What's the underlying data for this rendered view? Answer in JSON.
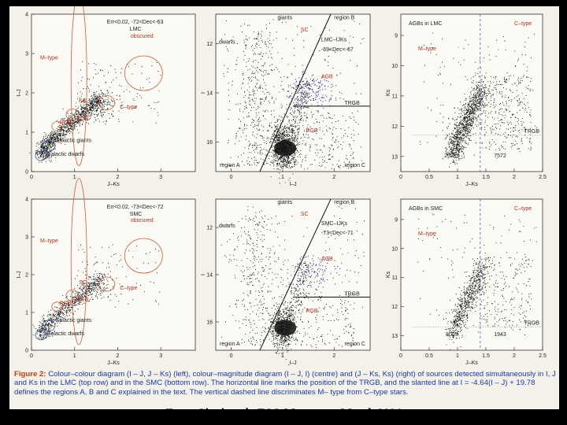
{
  "caption": {
    "label": "Figure 2:",
    "text": "Colour–colour diagram (I – J, J – Ks) (left), colour–magnitude diagram (I – J, I) (centre) and (J – Ks, Ks) (right) of sources detected simultaneously in I, J and Ks in the LMC (top row) and in the SMC (bottom row). The horizontal line marks the position of the TRGB, and the slanted line at I = -4.64(I – J) + 19.78 defines the regions A, B and C explained in the text. The vertical dashed line discriminates M– type from C–type stars."
  },
  "credit": "From Cioni et al., ESO Messenger March 2004",
  "colors": {
    "points": "#111111",
    "agb": "#3a3aa8",
    "annotation": "#c06040",
    "caption": "#1a3aa0"
  },
  "panels": {
    "lmc_cc": {
      "header": "Err<0.02, -72<Dec<-63",
      "header2": "LMC",
      "xlabel": "J–Ks",
      "ylabel": "I–J",
      "labels": [
        "M–type",
        "obscured",
        "C–type",
        "SC",
        "RGB",
        "AGB",
        "Galactic giants",
        "Galactic dwarfs"
      ]
    },
    "smc_cc": {
      "header": "Err<0.02, -73<Dec<-72",
      "header2": "SMC",
      "xlabel": "J–Ks",
      "ylabel": "I–J",
      "labels": [
        "M–type",
        "obscured",
        "C–type",
        "SC",
        "RGB",
        "AGB",
        "Galactic giants",
        "Galactic dwarfs"
      ]
    },
    "lmc_cm": {
      "xlabel": "I–J",
      "ylabel": "I",
      "labels": [
        "giants",
        "dwarfs",
        "SC",
        "region B",
        "LMC–IJKs",
        "-69<Dec<-67",
        "AGB",
        "TRGB",
        "RGB",
        "region A",
        "region C"
      ]
    },
    "smc_cm": {
      "xlabel": "I–J",
      "ylabel": "I",
      "labels": [
        "giants",
        "dwarfs",
        "SC",
        "region B",
        "SMC–IJKs",
        "-73<Dec<-71",
        "AGB",
        "TRGB",
        "RGB",
        "region A",
        "region C"
      ]
    },
    "lmc_jk": {
      "xlabel": "J–Ks",
      "ylabel": "Ks",
      "labels": [
        "AGBs in LMC",
        "C–type",
        "M–type",
        "TRGB",
        "25239",
        "7572"
      ]
    },
    "smc_jk": {
      "xlabel": "J–Ks",
      "ylabel": "Ks",
      "labels": [
        "AGBs in SMC",
        "C–type",
        "M–type",
        "TRGB",
        "8009",
        "1943"
      ]
    }
  },
  "chart_data": [
    {
      "type": "scatter",
      "panel": "LMC colour–colour",
      "xlabel": "J–Ks",
      "ylabel": "I–J",
      "xticks": [
        0,
        1,
        2,
        3
      ],
      "yticks": [
        0,
        1,
        2,
        3,
        4
      ],
      "xlim": [
        0,
        3.8
      ],
      "ylim": [
        0,
        4
      ],
      "legend": "top-right",
      "grid": false
    },
    {
      "type": "scatter",
      "panel": "LMC colour–magnitude",
      "xlabel": "I–J",
      "ylabel": "I",
      "xticks": [
        0,
        1,
        2
      ],
      "yticks": [
        12,
        14,
        16
      ],
      "xlim": [
        -0.3,
        2.7
      ],
      "ylim": [
        17.2,
        10.8
      ],
      "trgb": 14.54,
      "slanted_line": "I = -4.64(I–J) + 19.78"
    },
    {
      "type": "scatter",
      "panel": "LMC (J–Ks, Ks)",
      "xlabel": "J–Ks",
      "ylabel": "Ks",
      "xticks": [
        0,
        0.5,
        1,
        1.5,
        2,
        2.5
      ],
      "yticks": [
        9,
        10,
        11,
        12,
        13
      ],
      "xlim": [
        0,
        2.5
      ],
      "ylim": [
        13.5,
        8.3
      ],
      "trgb": 12.3,
      "divider_x": 1.4,
      "counts": {
        "M-type": 25239,
        "C-type": 7572
      }
    },
    {
      "type": "scatter",
      "panel": "SMC colour–colour",
      "xlabel": "J–Ks",
      "ylabel": "I–J",
      "xticks": [
        0,
        1,
        2,
        3
      ],
      "yticks": [
        0,
        1,
        2,
        3,
        4
      ],
      "xlim": [
        0,
        3.8
      ],
      "ylim": [
        0,
        4
      ]
    },
    {
      "type": "scatter",
      "panel": "SMC colour–magnitude",
      "xlabel": "I–J",
      "ylabel": "I",
      "xticks": [
        0,
        1,
        2
      ],
      "yticks": [
        12,
        14,
        16
      ],
      "xlim": [
        -0.3,
        2.7
      ],
      "ylim": [
        17.2,
        10.8
      ],
      "trgb": 14.95,
      "slanted_line": "I = -4.64(I–J) + 19.78"
    },
    {
      "type": "scatter",
      "panel": "SMC (J–Ks, Ks)",
      "xlabel": "J–Ks",
      "ylabel": "Ks",
      "xticks": [
        0,
        0.5,
        1,
        1.5,
        2,
        2.5
      ],
      "yticks": [
        9,
        10,
        11,
        12,
        13
      ],
      "xlim": [
        0,
        2.5
      ],
      "ylim": [
        13.5,
        8.3
      ],
      "trgb": 12.7,
      "divider_x": 1.4,
      "counts": {
        "M-type": 8009,
        "C-type": 1943
      }
    }
  ]
}
